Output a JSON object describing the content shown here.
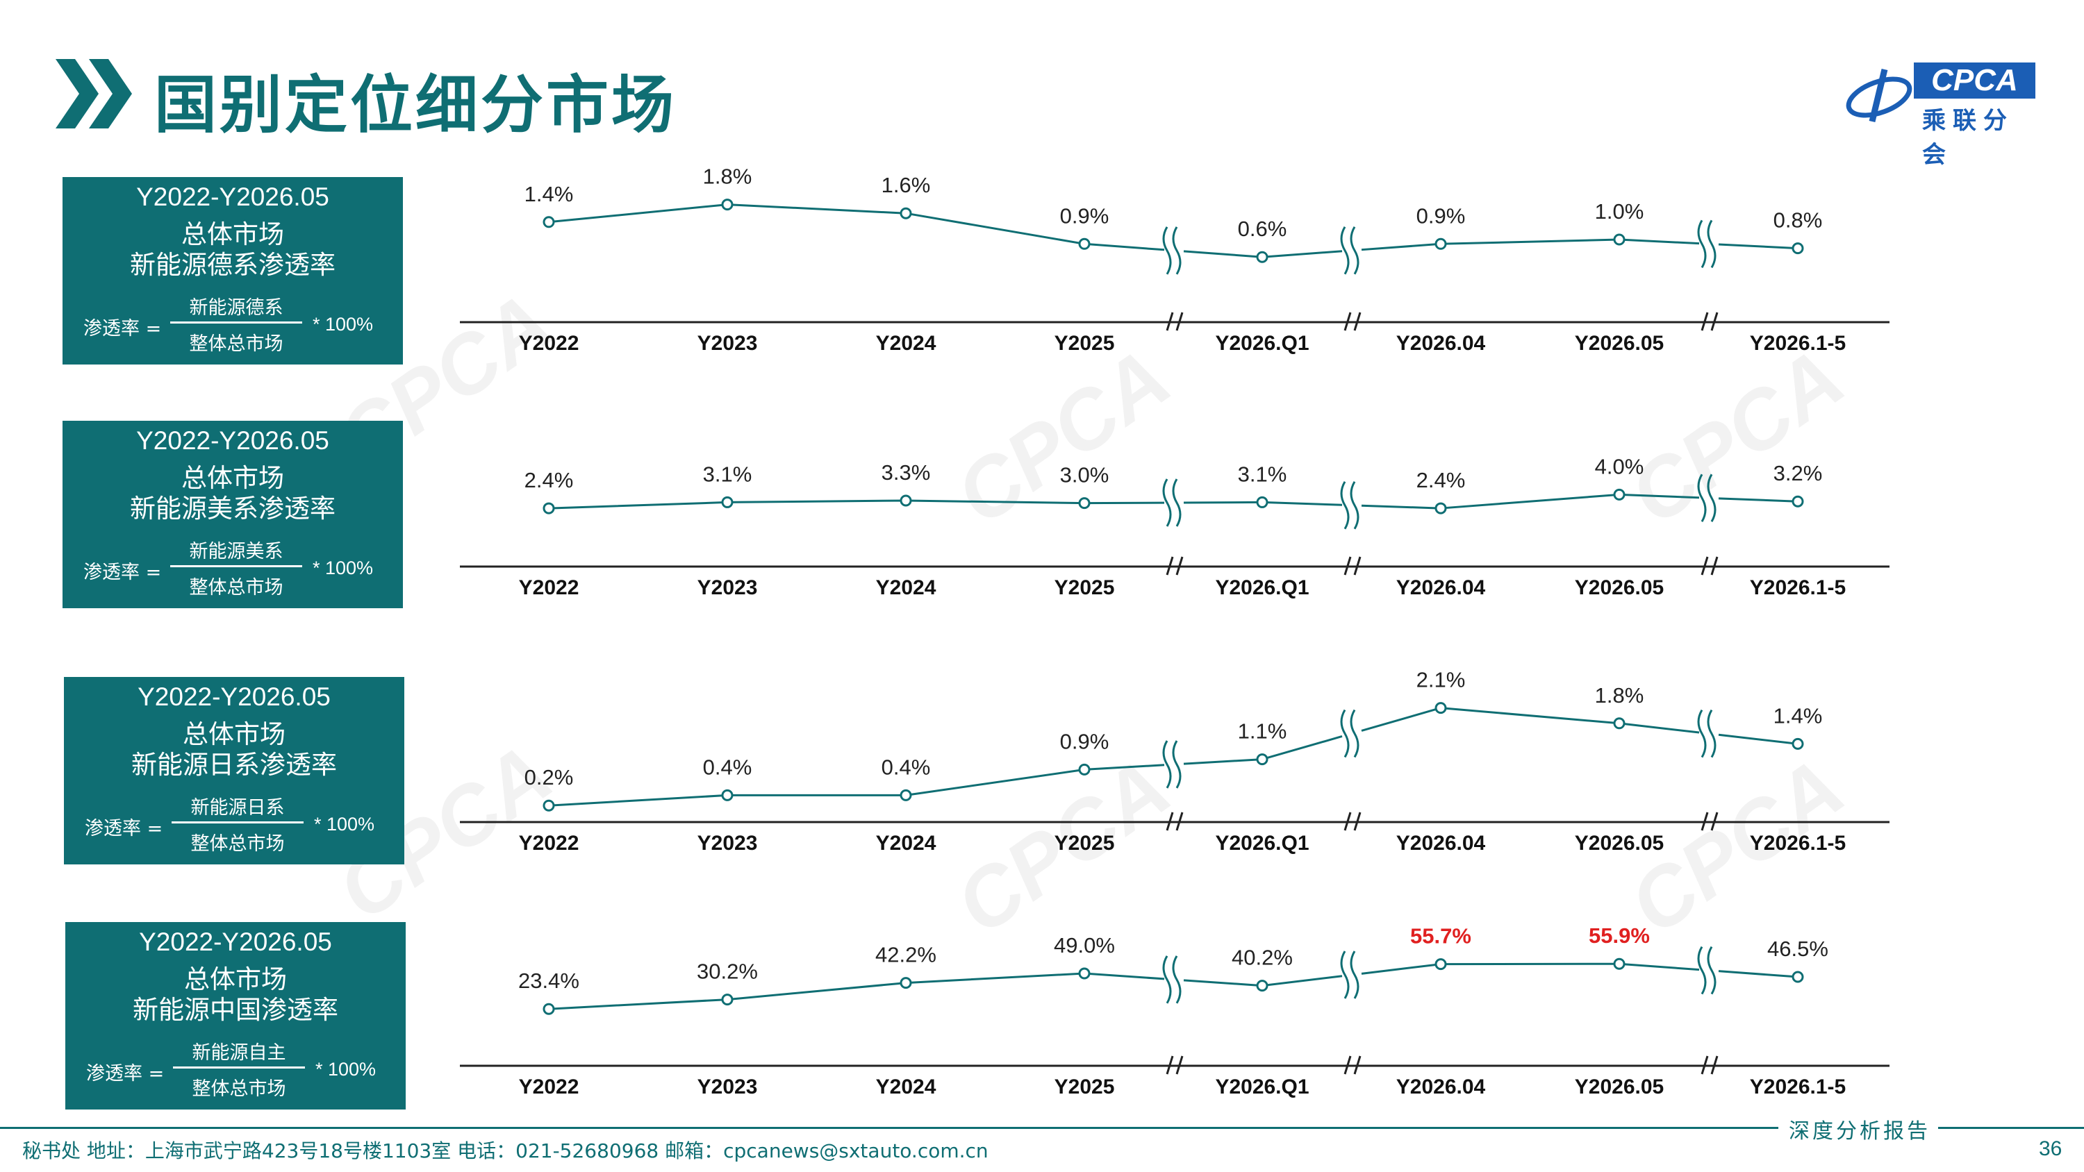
{
  "page": {
    "title": "国别定位细分市场",
    "page_number": "36",
    "logo": {
      "en": "CPCA",
      "cn": "乘联分会"
    },
    "footer": {
      "contact": "秘书处 地址：上海市武宁路423号18号楼1103室 电话：021-52680968 邮箱：cpcanews@sxtauto.com.cn",
      "report_label": "深度分析报告"
    },
    "colors": {
      "accent": "#0f6e73",
      "highlight": "#e02020",
      "brand": "#1b5eb5"
    }
  },
  "panels": [
    {
      "period": "Y2022-Y2026.05",
      "market": "总体市场",
      "rate_title": "新能源德系渗透率",
      "formula": {
        "lhs": "渗透率 =",
        "numerator": "新能源德系",
        "denominator": "整体总市场",
        "multiplier": "* 100%"
      }
    },
    {
      "period": "Y2022-Y2026.05",
      "market": "总体市场",
      "rate_title": "新能源美系渗透率",
      "formula": {
        "lhs": "渗透率 =",
        "numerator": "新能源美系",
        "denominator": "整体总市场",
        "multiplier": "* 100%"
      }
    },
    {
      "period": "Y2022-Y2026.05",
      "market": "总体市场",
      "rate_title": "新能源日系渗透率",
      "formula": {
        "lhs": "渗透率 =",
        "numerator": "新能源日系",
        "denominator": "整体总市场",
        "multiplier": "* 100%"
      }
    },
    {
      "period": "Y2022-Y2026.05",
      "market": "总体市场",
      "rate_title": "新能源中国渗透率",
      "formula": {
        "lhs": "渗透率 =",
        "numerator": "新能源自主",
        "denominator": "整体总市场",
        "multiplier": "* 100%"
      }
    }
  ],
  "chart_data": [
    {
      "type": "line",
      "categories": [
        "Y2022",
        "Y2023",
        "Y2024",
        "Y2025",
        "Y2026.Q1",
        "Y2026.04",
        "Y2026.05",
        "Y2026.1-5"
      ],
      "values": [
        1.4,
        1.8,
        1.6,
        0.9,
        0.6,
        0.9,
        1.0,
        0.8
      ],
      "labels": [
        "1.4%",
        "1.8%",
        "1.6%",
        "0.9%",
        "0.6%",
        "0.9%",
        "1.0%",
        "0.8%"
      ],
      "highlight": [
        false,
        false,
        false,
        false,
        false,
        false,
        false,
        false
      ],
      "axis_breaks_after": [
        3,
        4,
        6
      ],
      "ylim": [
        0.0,
        2.0
      ]
    },
    {
      "type": "line",
      "categories": [
        "Y2022",
        "Y2023",
        "Y2024",
        "Y2025",
        "Y2026.Q1",
        "Y2026.04",
        "Y2026.05",
        "Y2026.1-5"
      ],
      "values": [
        2.4,
        3.1,
        3.3,
        3.0,
        3.1,
        2.4,
        4.0,
        3.2
      ],
      "labels": [
        "2.4%",
        "3.1%",
        "3.3%",
        "3.0%",
        "3.1%",
        "2.4%",
        "4.0%",
        "3.2%"
      ],
      "highlight": [
        false,
        false,
        false,
        false,
        false,
        false,
        false,
        false
      ],
      "axis_breaks_after": [
        3,
        4,
        6
      ],
      "ylim": [
        -1.0,
        5.0
      ]
    },
    {
      "type": "line",
      "categories": [
        "Y2022",
        "Y2023",
        "Y2024",
        "Y2025",
        "Y2026.Q1",
        "Y2026.04",
        "Y2026.05",
        "Y2026.1-5"
      ],
      "values": [
        0.2,
        0.4,
        0.4,
        0.9,
        1.1,
        2.1,
        1.8,
        1.4
      ],
      "labels": [
        "0.2%",
        "0.4%",
        "0.4%",
        "0.9%",
        "1.1%",
        "2.1%",
        "1.8%",
        "1.4%"
      ],
      "highlight": [
        false,
        false,
        false,
        false,
        false,
        false,
        false,
        false
      ],
      "axis_breaks_after": [
        3,
        4,
        6
      ],
      "ylim": [
        0.0,
        2.5
      ]
    },
    {
      "type": "line",
      "categories": [
        "Y2022",
        "Y2023",
        "Y2024",
        "Y2025",
        "Y2026.Q1",
        "Y2026.04",
        "Y2026.05",
        "Y2026.1-5"
      ],
      "values": [
        23.4,
        30.2,
        42.2,
        49.0,
        40.2,
        55.7,
        55.9,
        46.5
      ],
      "labels": [
        "23.4%",
        "30.2%",
        "42.2%",
        "49.0%",
        "40.2%",
        "55.7%",
        "55.9%",
        "46.5%"
      ],
      "highlight": [
        false,
        false,
        false,
        false,
        false,
        true,
        true,
        false
      ],
      "axis_breaks_after": [
        3,
        4,
        6
      ],
      "ylim": [
        0.0,
        60.0
      ]
    }
  ]
}
